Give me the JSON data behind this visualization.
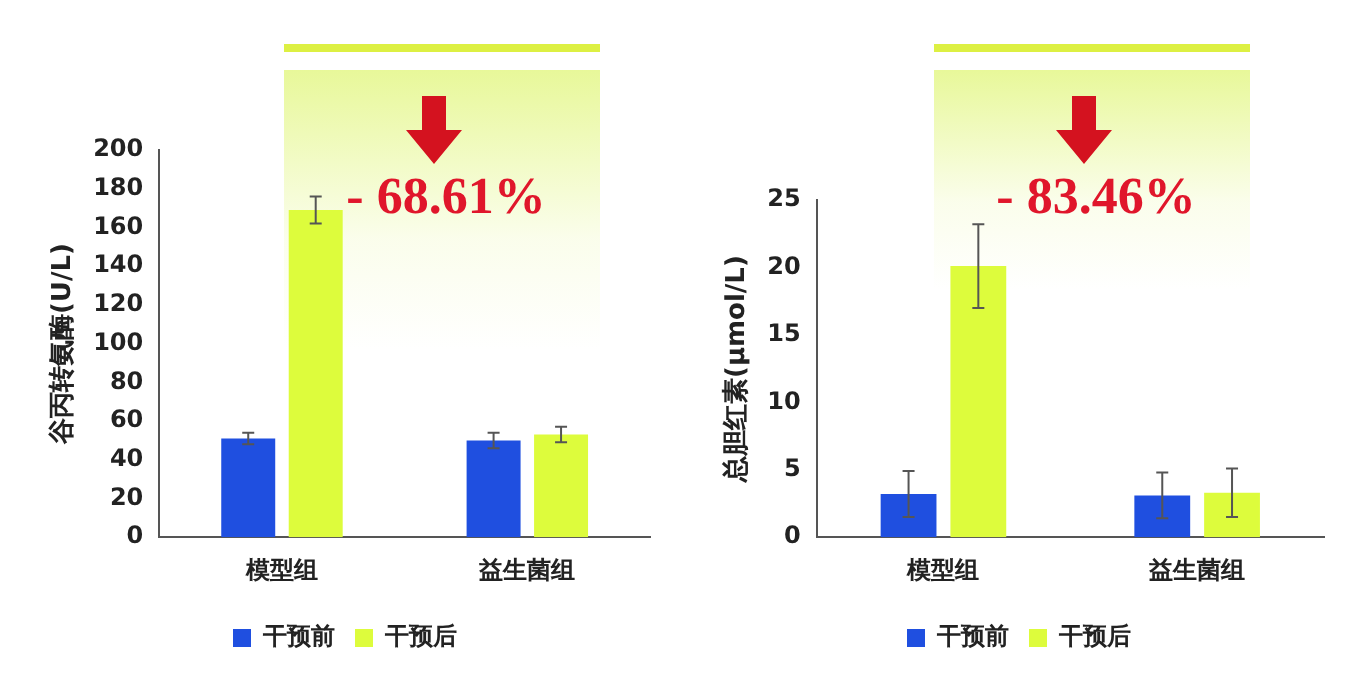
{
  "chart_data": [
    {
      "type": "bar",
      "ylabel": "谷丙转氨酶(U/L)",
      "categories": [
        "模型组",
        "益生菌组"
      ],
      "series": [
        {
          "name": "干预前",
          "color": "#1f4fe0",
          "values": [
            51,
            50
          ],
          "errors": [
            3,
            4
          ]
        },
        {
          "name": "干预后",
          "color": "#ddfc3c",
          "values": [
            169,
            53
          ],
          "errors": [
            7,
            4
          ]
        }
      ],
      "ylim": [
        0,
        200
      ],
      "yticks": [
        0,
        20,
        40,
        60,
        80,
        100,
        120,
        140,
        160,
        180,
        200
      ],
      "grid": false,
      "legend": "bottom",
      "annotations": [
        "- 68.61%"
      ]
    },
    {
      "type": "bar",
      "ylabel": "总胆红素(μmol/L)",
      "categories": [
        "模型组",
        "益生菌组"
      ],
      "series": [
        {
          "name": "干预前",
          "color": "#1f4fe0",
          "values": [
            3.2,
            3.1
          ],
          "errors": [
            1.7,
            1.7
          ]
        },
        {
          "name": "干预后",
          "color": "#ddfc3c",
          "values": [
            20.1,
            3.3
          ],
          "errors": [
            3.1,
            1.8
          ]
        }
      ],
      "ylim": [
        0,
        25
      ],
      "yticks": [
        0,
        5,
        10,
        15,
        20,
        25
      ],
      "grid": false,
      "legend": "bottom",
      "annotations": [
        "- 83.46%"
      ]
    }
  ]
}
